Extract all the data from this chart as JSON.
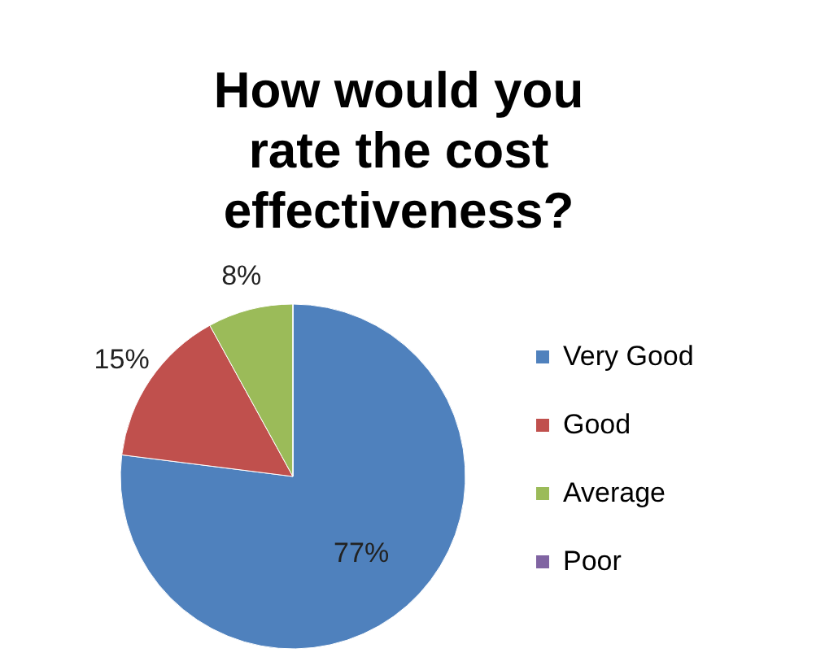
{
  "chart_data": {
    "type": "pie",
    "title": "How would you rate the cost effectiveness?",
    "categories": [
      "Very Good",
      "Good",
      "Average",
      "Poor"
    ],
    "values": [
      77,
      15,
      8,
      0
    ],
    "colors": [
      "#4f81bd",
      "#c0504d",
      "#9bbb59",
      "#8064a2"
    ],
    "value_labels": [
      "77%",
      "15%",
      "8%",
      null
    ],
    "legend": "right"
  }
}
